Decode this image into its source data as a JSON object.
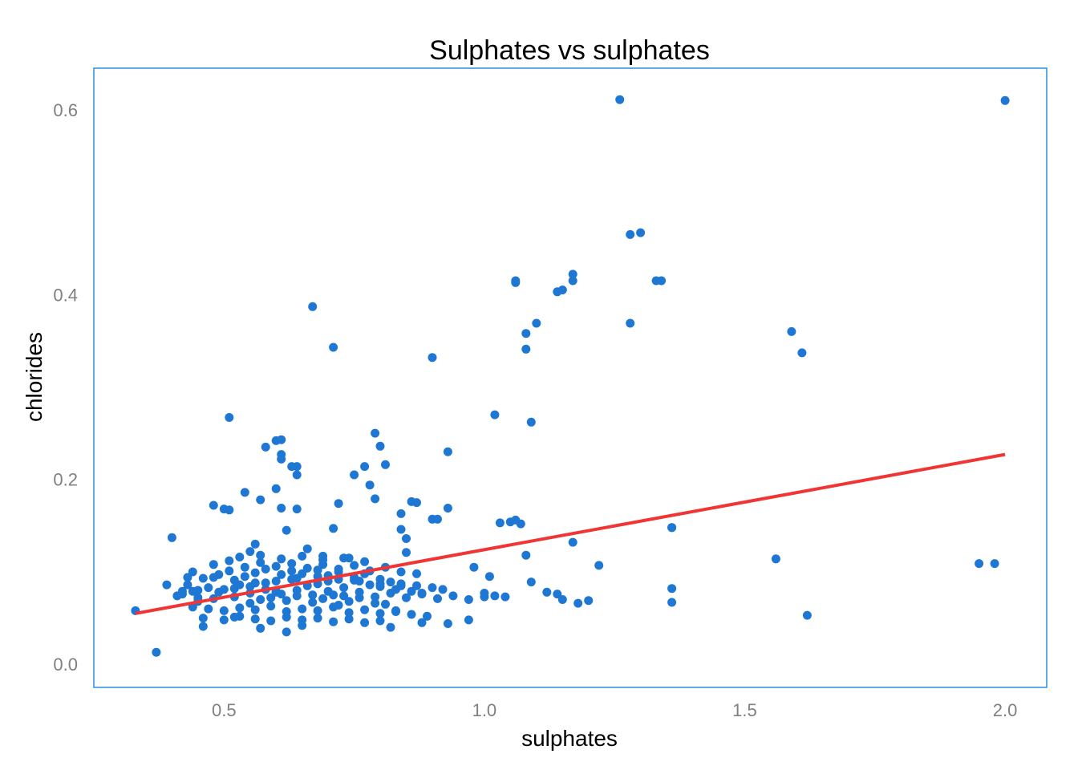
{
  "chart_data": {
    "type": "scatter",
    "title": "Sulphates vs sulphates",
    "xlabel": "sulphates",
    "ylabel": "chlorides",
    "xlim": [
      0.25,
      2.08
    ],
    "ylim": [
      -0.025,
      0.645
    ],
    "x_ticks": [
      0.5,
      1.0,
      1.5,
      2.0
    ],
    "x_tick_labels": [
      "0.5",
      "1.0",
      "1.5",
      "2.0"
    ],
    "y_ticks": [
      0.0,
      0.2,
      0.4,
      0.6
    ],
    "y_tick_labels": [
      "0.0",
      "0.2",
      "0.4",
      "0.6"
    ],
    "grid": false,
    "point_color": "#1f77d4",
    "line_color": "#f03535",
    "panel_border_color": "#2a8ee0",
    "series": [
      {
        "kind": "points",
        "x": [
          1.26,
          2.0,
          1.3,
          1.28,
          1.06,
          1.06,
          1.17,
          1.17,
          1.15,
          1.14,
          1.33,
          1.34,
          0.67,
          1.28,
          1.1,
          1.08,
          0.71,
          1.08,
          0.9,
          1.59,
          1.61,
          1.02,
          1.09,
          0.51,
          0.79,
          0.6,
          0.61,
          0.58,
          0.8,
          0.61,
          0.61,
          0.64,
          0.63,
          0.77,
          0.93,
          0.81,
          0.75,
          0.64,
          0.78,
          0.6,
          0.54,
          0.57,
          0.48,
          0.5,
          0.51,
          0.61,
          0.72,
          0.79,
          0.64,
          0.86,
          0.87,
          0.93,
          0.84,
          0.9,
          0.91,
          0.84,
          1.06,
          1.05,
          1.07,
          1.03,
          1.36,
          1.56,
          1.95,
          1.98,
          1.62,
          0.37,
          0.39,
          0.43,
          0.4,
          0.33,
          0.42,
          0.45,
          0.71,
          0.56,
          0.62,
          0.85,
          0.85,
          1.17,
          1.22,
          1.08,
          1.36,
          1.36,
          1.36,
          1.12,
          1.14,
          1.15,
          1.18,
          1.2,
          0.97,
          1.0,
          1.01,
          0.62,
          0.65,
          0.57,
          0.82,
          0.52,
          0.46,
          0.72,
          0.83,
          0.6,
          0.88,
          0.55,
          0.69,
          0.74,
          0.66,
          0.93,
          0.98,
          1.02,
          1.04,
          1.09,
          0.41,
          0.44,
          0.47,
          0.5,
          0.53,
          0.55,
          0.58,
          0.6,
          0.63,
          0.66,
          0.68,
          0.7,
          0.73,
          0.75,
          0.78,
          0.8,
          0.83,
          0.86,
          0.88,
          0.45,
          0.48,
          0.52,
          0.55,
          0.57,
          0.59,
          0.62,
          0.64,
          0.67,
          0.69,
          0.71,
          0.74,
          0.76,
          0.79,
          0.81,
          0.43,
          0.46,
          0.49,
          0.51,
          0.54,
          0.56,
          0.58,
          0.61,
          0.63,
          0.65,
          0.68,
          0.7,
          0.72,
          0.75,
          0.77,
          0.8,
          0.82,
          0.84,
          0.87,
          0.9,
          0.92,
          0.44,
          0.47,
          0.5,
          0.53,
          0.56,
          0.59,
          0.62,
          0.65,
          0.68,
          0.71,
          0.74,
          0.77,
          0.8,
          0.83,
          0.86,
          0.89,
          0.48,
          0.51,
          0.54,
          0.57,
          0.6,
          0.63,
          0.66,
          0.69,
          0.72,
          0.75,
          0.78,
          0.81,
          0.84,
          0.87,
          0.42,
          0.45,
          0.49,
          0.52,
          0.55,
          0.58,
          0.61,
          0.64,
          0.67,
          0.7,
          0.73,
          0.76,
          0.79,
          0.82,
          0.85,
          0.88,
          0.91,
          0.94,
          0.97,
          1.0,
          0.46,
          0.5,
          0.53,
          0.56,
          0.59,
          0.62,
          0.65,
          0.68,
          0.71,
          0.74,
          0.77,
          0.8,
          0.44,
          0.48,
          0.52,
          0.56,
          0.6,
          0.64,
          0.68,
          0.72,
          0.76,
          0.8,
          0.84,
          0.53,
          0.57,
          0.61,
          0.65,
          0.69,
          0.73,
          0.77
        ],
        "y": [
          0.611,
          0.61,
          0.467,
          0.465,
          0.415,
          0.413,
          0.422,
          0.415,
          0.405,
          0.403,
          0.415,
          0.415,
          0.387,
          0.369,
          0.369,
          0.358,
          0.343,
          0.341,
          0.332,
          0.36,
          0.337,
          0.27,
          0.262,
          0.267,
          0.25,
          0.242,
          0.243,
          0.235,
          0.236,
          0.227,
          0.222,
          0.214,
          0.214,
          0.214,
          0.23,
          0.216,
          0.205,
          0.205,
          0.194,
          0.19,
          0.186,
          0.178,
          0.172,
          0.168,
          0.167,
          0.169,
          0.174,
          0.179,
          0.168,
          0.176,
          0.175,
          0.169,
          0.163,
          0.157,
          0.157,
          0.146,
          0.156,
          0.154,
          0.152,
          0.153,
          0.148,
          0.114,
          0.109,
          0.109,
          0.053,
          0.013,
          0.086,
          0.094,
          0.137,
          0.058,
          0.079,
          0.072,
          0.147,
          0.13,
          0.145,
          0.136,
          0.121,
          0.132,
          0.107,
          0.118,
          0.082,
          0.067,
          0.148,
          0.078,
          0.076,
          0.07,
          0.066,
          0.069,
          0.048,
          0.077,
          0.095,
          0.035,
          0.042,
          0.039,
          0.04,
          0.051,
          0.041,
          0.064,
          0.057,
          0.078,
          0.045,
          0.122,
          0.117,
          0.115,
          0.125,
          0.044,
          0.105,
          0.074,
          0.073,
          0.089,
          0.074,
          0.079,
          0.083,
          0.081,
          0.086,
          0.084,
          0.088,
          0.079,
          0.092,
          0.085,
          0.087,
          0.09,
          0.083,
          0.091,
          0.086,
          0.084,
          0.081,
          0.079,
          0.077,
          0.068,
          0.071,
          0.073,
          0.066,
          0.07,
          0.072,
          0.069,
          0.074,
          0.067,
          0.071,
          0.075,
          0.068,
          0.072,
          0.066,
          0.065,
          0.086,
          0.093,
          0.097,
          0.101,
          0.095,
          0.099,
          0.103,
          0.097,
          0.101,
          0.098,
          0.102,
          0.096,
          0.1,
          0.094,
          0.098,
          0.092,
          0.089,
          0.087,
          0.085,
          0.083,
          0.081,
          0.062,
          0.06,
          0.058,
          0.061,
          0.059,
          0.063,
          0.057,
          0.06,
          0.058,
          0.062,
          0.056,
          0.059,
          0.055,
          0.058,
          0.054,
          0.052,
          0.108,
          0.112,
          0.105,
          0.11,
          0.106,
          0.109,
          0.104,
          0.108,
          0.103,
          0.107,
          0.101,
          0.105,
          0.1,
          0.098,
          0.076,
          0.08,
          0.078,
          0.082,
          0.077,
          0.081,
          0.076,
          0.08,
          0.075,
          0.079,
          0.074,
          0.078,
          0.073,
          0.077,
          0.072,
          0.076,
          0.071,
          0.074,
          0.07,
          0.073,
          0.05,
          0.048,
          0.052,
          0.049,
          0.047,
          0.051,
          0.048,
          0.05,
          0.046,
          0.049,
          0.045,
          0.047,
          0.1,
          0.094,
          0.091,
          0.088,
          0.09,
          0.093,
          0.095,
          0.092,
          0.09,
          0.087,
          0.085,
          0.116,
          0.118,
          0.114,
          0.117,
          0.113,
          0.115,
          0.111
        ]
      },
      {
        "kind": "regression-line",
        "x": [
          0.33,
          2.0
        ],
        "y": [
          0.055,
          0.227
        ]
      }
    ]
  }
}
